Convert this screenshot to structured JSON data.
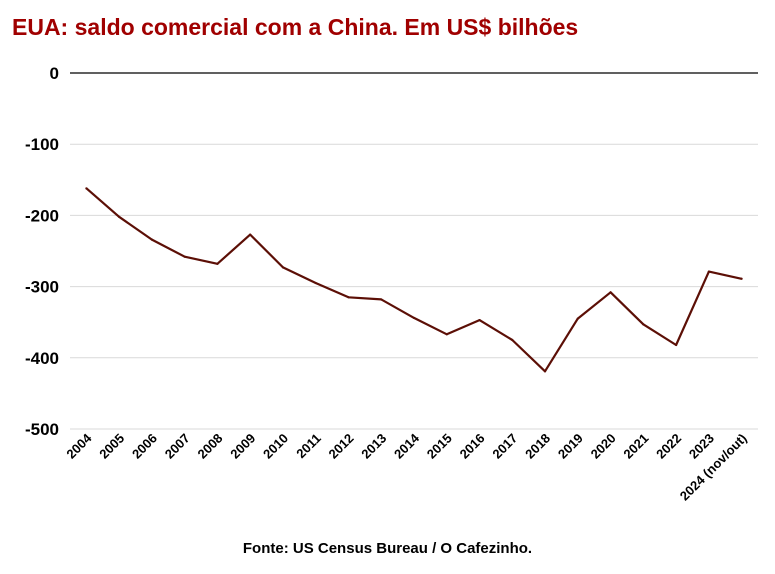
{
  "chart_data": {
    "type": "line",
    "title": "EUA: saldo comercial com a China. Em US$ bilhões",
    "source": "Fonte: US Census Bureau / O Cafezinho.",
    "xlabel": "",
    "ylabel": "",
    "ylim": [
      -500,
      0
    ],
    "yticks": [
      0,
      -100,
      -200,
      -300,
      -400,
      -500
    ],
    "grid": true,
    "legend": "none",
    "categories": [
      "2004",
      "2005",
      "2006",
      "2007",
      "2008",
      "2009",
      "2010",
      "2011",
      "2012",
      "2013",
      "2014",
      "2015",
      "2016",
      "2017",
      "2018",
      "2019",
      "2020",
      "2021",
      "2022",
      "2023",
      "2024 (nov/out)"
    ],
    "series": [
      {
        "values": [
          -162,
          -202,
          -234,
          -258,
          -268,
          -227,
          -273,
          -295,
          -315,
          -318,
          -344,
          -367,
          -347,
          -375,
          -419,
          -345,
          -308,
          -353,
          -382,
          -279,
          -289
        ]
      }
    ],
    "colors": {
      "title": "#a00000",
      "line": "#5c0f06",
      "grid": "#d9d9d9",
      "zero_line": "#000000"
    }
  }
}
